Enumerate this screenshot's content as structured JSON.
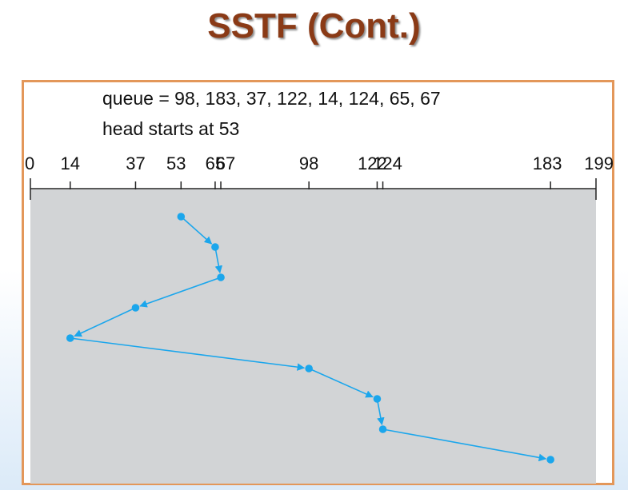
{
  "title": "SSTF (Cont.)",
  "queue_text": "queue = 98, 183, 37, 122, 14, 124, 65, 67",
  "head_text": "head starts at 53",
  "colors": {
    "title": "#8a3a16",
    "frame_border": "#e3975a",
    "plot_background": "#d2d4d6",
    "path": "#1ba6ec"
  },
  "axis": {
    "min": 0,
    "max": 199,
    "tick_values": [
      0,
      14,
      37,
      53,
      65,
      67,
      98,
      122,
      124,
      183,
      199
    ],
    "tick_labels": [
      "0",
      "14",
      "37",
      "53",
      "65",
      "67",
      "98",
      "122",
      "124",
      "183",
      "199"
    ]
  },
  "head_path": [
    53,
    65,
    67,
    37,
    14,
    98,
    122,
    124,
    183
  ]
}
